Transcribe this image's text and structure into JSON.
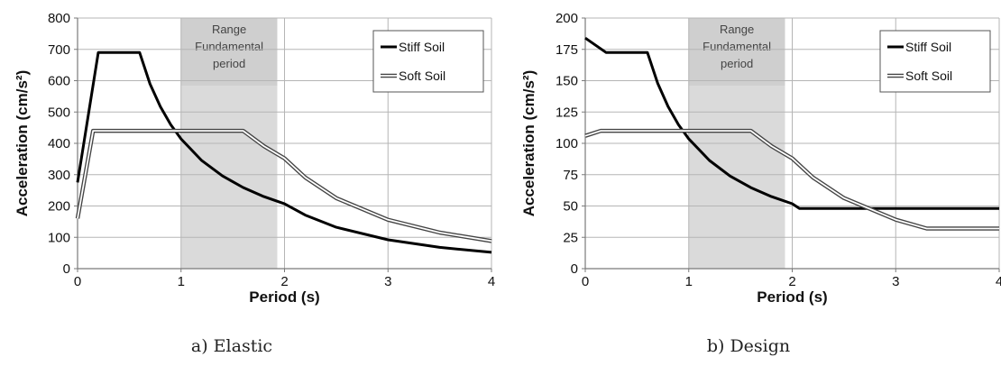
{
  "chart_data": [
    {
      "type": "line",
      "caption": "a)   Elastic",
      "xlabel": "Period (s)",
      "ylabel": "Acceleration (cm/s²)",
      "xlim": [
        0,
        4
      ],
      "ylim": [
        0,
        800
      ],
      "xticks": [
        0,
        1,
        2,
        3,
        4
      ],
      "yticks": [
        0,
        100,
        200,
        300,
        400,
        500,
        600,
        700,
        800
      ],
      "grid": true,
      "legend_position": "top-right",
      "highlight_band": {
        "x": [
          1.0,
          1.93
        ],
        "label_lines": [
          "Range",
          "Fundamental",
          "period"
        ]
      },
      "series": [
        {
          "name": "Stiff Soil",
          "style": "solid-black",
          "x": [
            0,
            0.2,
            0.6,
            0.7,
            0.8,
            0.9,
            1.0,
            1.2,
            1.4,
            1.6,
            1.8,
            2.0,
            2.2,
            2.5,
            3.0,
            3.5,
            4.0
          ],
          "y": [
            275,
            690,
            690,
            590,
            517,
            460,
            414,
            345,
            296,
            259,
            230,
            207,
            171,
            132,
            92,
            68,
            52
          ]
        },
        {
          "name": "Soft Soil",
          "style": "double-line",
          "x": [
            0,
            0.15,
            1.6,
            1.8,
            2.0,
            2.2,
            2.5,
            3.0,
            3.5,
            4.0
          ],
          "y": [
            160,
            440,
            440,
            391,
            352,
            291,
            225,
            156,
            115,
            88
          ]
        }
      ]
    },
    {
      "type": "line",
      "caption": "b)   Design",
      "xlabel": "Period (s)",
      "ylabel": "Acceleration (cm/s²)",
      "xlim": [
        0,
        4
      ],
      "ylim": [
        0,
        200
      ],
      "xticks": [
        0,
        1,
        2,
        3,
        4
      ],
      "yticks": [
        0,
        25,
        50,
        75,
        100,
        125,
        150,
        175,
        200
      ],
      "grid": true,
      "legend_position": "top-right",
      "highlight_band": {
        "x": [
          1.0,
          1.93
        ],
        "label_lines": [
          "Range",
          "Fundamental",
          "period"
        ]
      },
      "series": [
        {
          "name": "Stiff Soil",
          "style": "solid-black",
          "x": [
            0,
            0.2,
            0.6,
            0.7,
            0.8,
            0.9,
            1.0,
            1.2,
            1.4,
            1.6,
            1.8,
            2.0,
            2.07,
            4.0
          ],
          "y": [
            184,
            172.5,
            172.5,
            147.9,
            129.4,
            115,
            103.5,
            86.3,
            73.9,
            64.7,
            57.5,
            51.8,
            48,
            48
          ]
        },
        {
          "name": "Soft Soil",
          "style": "double-line",
          "x": [
            0,
            0.15,
            1.6,
            1.8,
            2.0,
            2.2,
            2.5,
            3.0,
            3.3,
            4.0
          ],
          "y": [
            106,
            110,
            110,
            97.8,
            88,
            72.7,
            56.3,
            39.1,
            32,
            32
          ]
        }
      ]
    }
  ]
}
